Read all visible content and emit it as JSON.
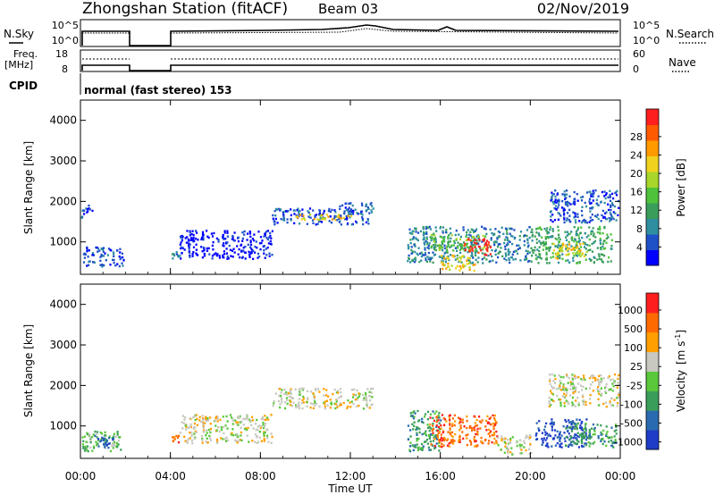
{
  "header": {
    "title": "Zhongshan Station (fitACF)",
    "beam": "Beam 03",
    "date": "02/Nov/2019"
  },
  "top_panels": {
    "nsky_label": "N.Sky",
    "nsky_ticks": [
      "10^5",
      "10^0"
    ],
    "nsearch_label": "N.Search",
    "nsearch_ticks": [
      "10^5",
      "10^0"
    ],
    "freq_label_1": "Freq.",
    "freq_label_2": "[MHz]",
    "freq_ticks": [
      "18",
      "8"
    ],
    "nave_label": "Nave",
    "nave_ticks": [
      "60",
      "0"
    ],
    "cpid_label": "CPID",
    "cpid_text": "normal (fast stereo) 153"
  },
  "chart_data": [
    {
      "type": "heatmap",
      "name": "power",
      "ylabel": "Slant Range [km]",
      "yticks": [
        "1000",
        "2000",
        "3000",
        "4000"
      ],
      "ylim": [
        200,
        4500
      ],
      "colorbar_label": "Power [dB]",
      "colorbar_ticks": [
        "4",
        "8",
        "12",
        "16",
        "20",
        "24",
        "28"
      ],
      "colorbar_colors": [
        "#0000ff",
        "#1e50c8",
        "#2f8fa0",
        "#3a9e5a",
        "#4ec23a",
        "#a8d62a",
        "#f0d21e",
        "#ff9a00",
        "#ff5a00",
        "#ff1e1e"
      ],
      "clusters": [
        {
          "t": [
            0.0,
            0.5
          ],
          "r": [
            1600,
            1950
          ],
          "level": 1
        },
        {
          "t": [
            0.1,
            1.9
          ],
          "r": [
            400,
            900
          ],
          "level": 1
        },
        {
          "t": [
            4.0,
            4.4
          ],
          "r": [
            600,
            800
          ],
          "level": 2
        },
        {
          "t": [
            4.4,
            8.5
          ],
          "r": [
            600,
            1300
          ],
          "level": 0
        },
        {
          "t": [
            8.5,
            12.8
          ],
          "r": [
            1450,
            1850
          ],
          "level": 1
        },
        {
          "t": [
            9.5,
            12.0
          ],
          "r": [
            1550,
            1700
          ],
          "level": 6
        },
        {
          "t": [
            11.5,
            13.0
          ],
          "r": [
            1700,
            2000
          ],
          "level": 1
        },
        {
          "t": [
            14.5,
            20.0
          ],
          "r": [
            500,
            1400
          ],
          "level": 2
        },
        {
          "t": [
            15.5,
            18.0
          ],
          "r": [
            800,
            1200
          ],
          "level": 4
        },
        {
          "t": [
            17.0,
            18.2
          ],
          "r": [
            700,
            1100
          ],
          "level": 9
        },
        {
          "t": [
            16.0,
            17.5
          ],
          "r": [
            300,
            700
          ],
          "level": 6
        },
        {
          "t": [
            20.0,
            23.6
          ],
          "r": [
            500,
            1400
          ],
          "level": 3
        },
        {
          "t": [
            21.0,
            22.5
          ],
          "r": [
            600,
            1000
          ],
          "level": 6
        },
        {
          "t": [
            20.8,
            23.9
          ],
          "r": [
            1500,
            2300
          ],
          "level": 1
        }
      ]
    },
    {
      "type": "heatmap",
      "name": "velocity",
      "ylabel": "Slant Range [km]",
      "yticks": [
        "1000",
        "2000",
        "3000",
        "4000"
      ],
      "ylim": [
        200,
        4500
      ],
      "xlabel": "Time UT",
      "xticks": [
        "00:00",
        "04:00",
        "08:00",
        "12:00",
        "16:00",
        "20:00",
        "00:00"
      ],
      "xlim": [
        0,
        24
      ],
      "colorbar_label_1": "Velocity",
      "colorbar_label_2": "[m s",
      "colorbar_label_3": "-1",
      "colorbar_label_4": "]",
      "colorbar_ticks": [
        "1000",
        "500",
        "100",
        "25",
        "-25",
        "-100",
        "-500",
        "-1000"
      ],
      "colorbar_colors": [
        "#1e3cc8",
        "#2a6ab0",
        "#3a9e5a",
        "#5ac83a",
        "#c8c8c0",
        "#ffa000",
        "#ff6a00",
        "#ff1e1e"
      ],
      "clusters": [
        {
          "t": [
            0.0,
            1.8
          ],
          "r": [
            400,
            900
          ],
          "level": 3
        },
        {
          "t": [
            0.5,
            1.5
          ],
          "r": [
            450,
            800
          ],
          "level": 1
        },
        {
          "t": [
            4.0,
            4.4
          ],
          "r": [
            600,
            800
          ],
          "level": 6
        },
        {
          "t": [
            4.4,
            8.5
          ],
          "r": [
            600,
            1300
          ],
          "level": 4
        },
        {
          "t": [
            8.5,
            13.0
          ],
          "r": [
            1450,
            1950
          ],
          "level": 4
        },
        {
          "t": [
            14.5,
            16.0
          ],
          "r": [
            400,
            1400
          ],
          "level": 2
        },
        {
          "t": [
            15.5,
            18.5
          ],
          "r": [
            500,
            1300
          ],
          "level": 6
        },
        {
          "t": [
            18.5,
            20.0
          ],
          "r": [
            300,
            800
          ],
          "level": 4
        },
        {
          "t": [
            20.2,
            22.5
          ],
          "r": [
            500,
            1200
          ],
          "level": 0
        },
        {
          "t": [
            21.5,
            23.8
          ],
          "r": [
            500,
            1100
          ],
          "level": 2
        },
        {
          "t": [
            20.8,
            23.9
          ],
          "r": [
            1500,
            2300
          ],
          "level": 4
        }
      ]
    }
  ]
}
